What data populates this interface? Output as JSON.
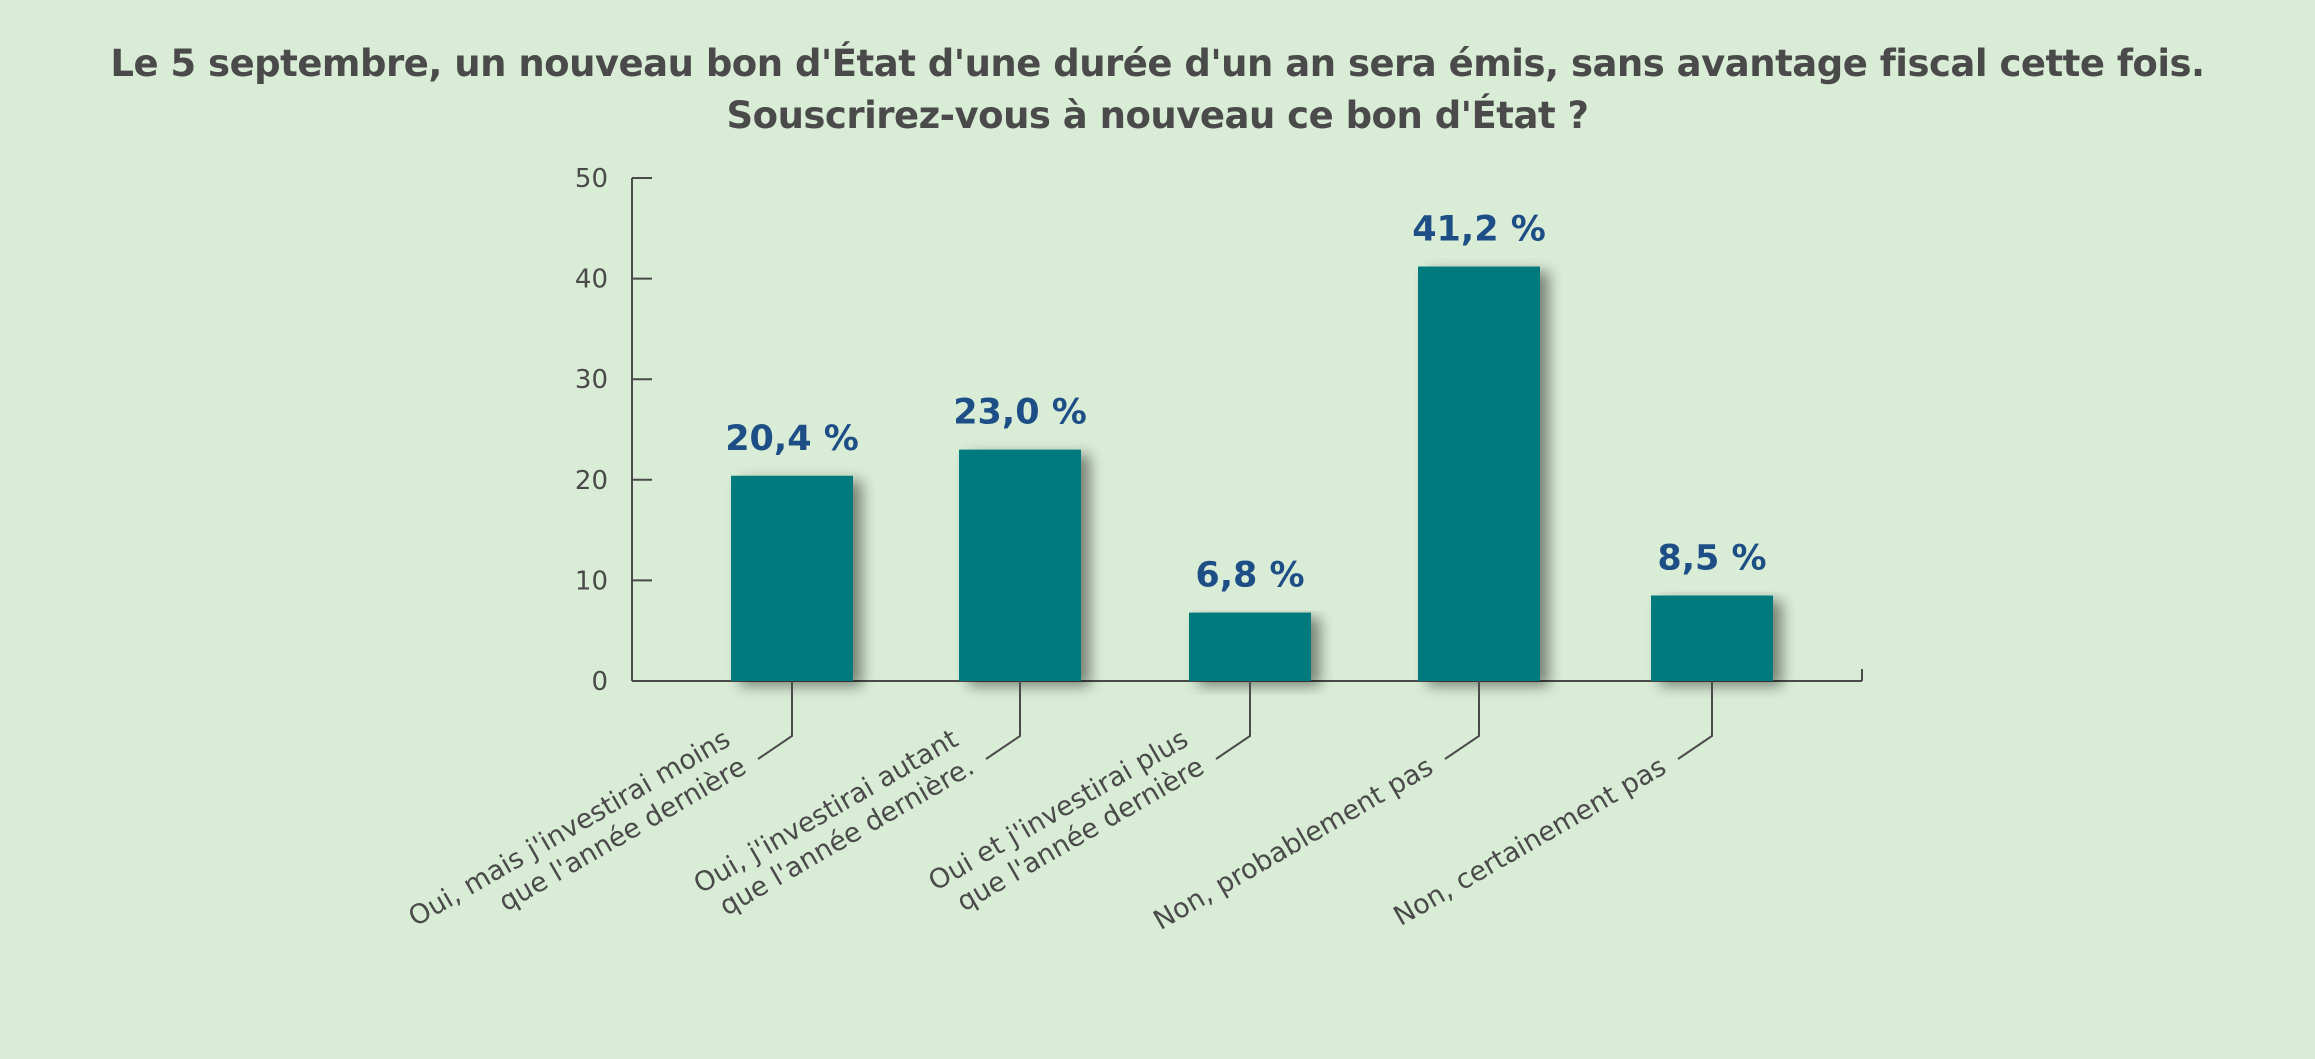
{
  "title": {
    "line1": "Le 5 septembre, un nouveau bon d'État d'une durée d'un an sera émis, sans avantage fiscal cette fois.",
    "line2": "Souscrirez-vous à nouveau ce bon d'État ?"
  },
  "colors": {
    "background": "#d9ecd6",
    "bar": "#037a7d",
    "value_label": "#1d4e86",
    "text": "#4a4a4a",
    "axis": "#4a4a4a"
  },
  "chart_data": {
    "type": "bar",
    "categories": [
      [
        "Oui, mais j'investirai moins",
        "que l'année dernière"
      ],
      [
        "Oui, j'investirai autant",
        "que l'année dernière."
      ],
      [
        "Oui et j'investirai plus",
        "que l'année dernière"
      ],
      [
        "Non, probablement pas"
      ],
      [
        "Non, certainement pas"
      ]
    ],
    "values": [
      20.4,
      23.0,
      6.8,
      41.2,
      8.5
    ],
    "value_labels": [
      "20,4 %",
      "23,0 %",
      "6,8 %",
      "41,2 %",
      "8,5 %"
    ],
    "ylim": [
      0,
      50
    ],
    "yticks": [
      0,
      10,
      20,
      30,
      40,
      50
    ],
    "grid": false,
    "legend": "none"
  }
}
